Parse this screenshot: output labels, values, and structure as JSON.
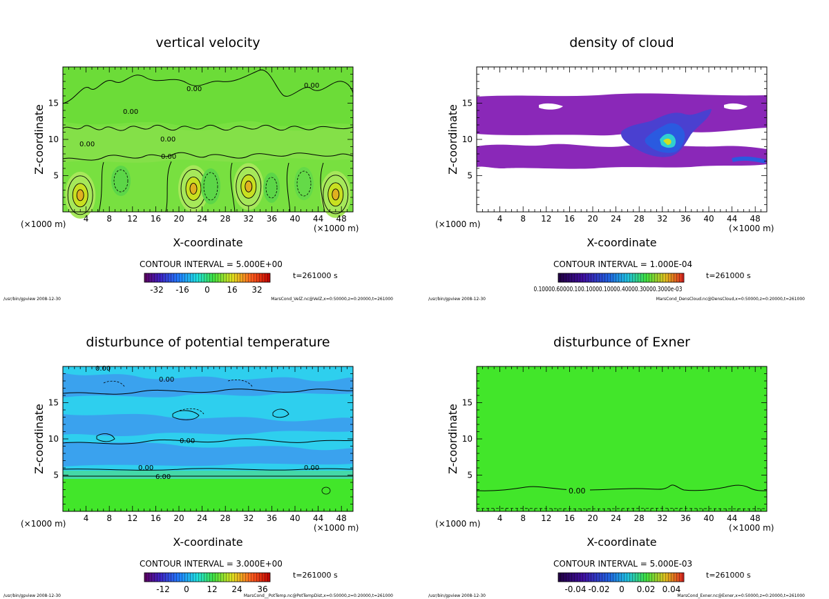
{
  "footer_left": "/usr/bin/gpview  2008-12-30",
  "colors": {
    "panel_green": "#42e62a",
    "light_green": "#78e040",
    "pale_green": "#a6e85a",
    "cloud_purple": "#8a28b8",
    "cloud_blue": "#2a5ae0",
    "temp_cyan": "#2ecfee",
    "temp_blue": "#3aa2ee"
  },
  "chart_data": [
    {
      "type": "heatmap",
      "title": "vertical velocity",
      "xlabel": "X-coordinate",
      "ylabel": "Z-coordinate",
      "x_unit_left": "(×1000 m)",
      "x_unit_right": "(×1000 m)",
      "xlim": [
        0,
        50
      ],
      "ylim": [
        0,
        20
      ],
      "x_ticks": [
        "4",
        "8",
        "12",
        "16",
        "20",
        "24",
        "28",
        "32",
        "36",
        "40",
        "44",
        "48"
      ],
      "y_ticks": [
        "5",
        "10",
        "15"
      ],
      "contour_interval": "CONTOUR INTERVAL = 5.000E+00",
      "time": "t=261000 s",
      "colorbar_ticks": [
        "-32",
        "-16",
        "0",
        "16",
        "32"
      ],
      "contour_labels": [
        "0.00",
        "0.00",
        "0.00",
        "0.00",
        "0.00",
        "0.00"
      ],
      "footer_right": "MarsCond_VelZ.nc@VelZ,x=0:50000,z=0:20000,t=261000",
      "updraft_cells": [
        {
          "x": 3.0,
          "z": 2.3
        },
        {
          "x": 22.5,
          "z": 3.2
        },
        {
          "x": 32.0,
          "z": 3.5
        },
        {
          "x": 47.0,
          "z": 2.4
        }
      ]
    },
    {
      "type": "heatmap",
      "title": "density of cloud",
      "xlabel": "X-coordinate",
      "ylabel": "Z-coordinate",
      "x_unit_left": "(×1000 m)",
      "x_unit_right": "(×1000 m)",
      "xlim": [
        0,
        50
      ],
      "ylim": [
        0,
        20
      ],
      "x_ticks": [
        "4",
        "8",
        "12",
        "16",
        "20",
        "24",
        "28",
        "32",
        "36",
        "40",
        "44",
        "48"
      ],
      "y_ticks": [
        "5",
        "10",
        "15"
      ],
      "contour_interval": "CONTOUR INTERVAL = 1.000E-04",
      "time": "t=261000 s",
      "colorbar_ticks_text": "0.10000.60000.100.10000.10000.40000.30000.3000e-03",
      "footer_right": "MarsCond_DensCloud.nc@DensCloud,x=0:50000,z=0:20000,t=261000",
      "cloud_layers_z": [
        [
          11,
          16
        ],
        [
          6,
          9
        ]
      ]
    },
    {
      "type": "heatmap",
      "title": "disturbunce of potential temperature",
      "xlabel": "X-coordinate",
      "ylabel": "Z-coordinate",
      "x_unit_left": "(×1000 m)",
      "x_unit_right": "(×1000 m)",
      "xlim": [
        0,
        50
      ],
      "ylim": [
        0,
        20
      ],
      "x_ticks": [
        "4",
        "8",
        "12",
        "16",
        "20",
        "24",
        "28",
        "32",
        "36",
        "40",
        "44",
        "48"
      ],
      "y_ticks": [
        "5",
        "10",
        "15"
      ],
      "contour_interval": "CONTOUR INTERVAL = 3.000E+00",
      "time": "t=261000 s",
      "colorbar_ticks": [
        "-12",
        "0",
        "12",
        "24",
        "36"
      ],
      "contour_labels": [
        "0.00",
        "0.00",
        "0.00",
        "0.00",
        "0.00",
        "6.00"
      ],
      "footer_right": "MarsCond__PotTemp.nc@PotTempDist,x=0:50000,z=0:20000,t=261000"
    },
    {
      "type": "heatmap",
      "title": "disturbunce of Exner",
      "xlabel": "X-coordinate",
      "ylabel": "Z-coordinate",
      "x_unit_left": "(×1000 m)",
      "x_unit_right": "(×1000 m)",
      "xlim": [
        0,
        50
      ],
      "ylim": [
        0,
        20
      ],
      "x_ticks": [
        "4",
        "8",
        "12",
        "16",
        "20",
        "24",
        "28",
        "32",
        "36",
        "40",
        "44",
        "48"
      ],
      "y_ticks": [
        "5",
        "10",
        "15"
      ],
      "contour_interval": "CONTOUR INTERVAL = 5.000E-03",
      "time": "t=261000 s",
      "colorbar_ticks": [
        "-0.04",
        "-0.02",
        "0",
        "0.02",
        "0.04"
      ],
      "contour_labels": [
        "0.00"
      ],
      "footer_right": "MarsCond_Exner.nc@Exner,x=0:50000,z=0:20000,t=261000"
    }
  ]
}
